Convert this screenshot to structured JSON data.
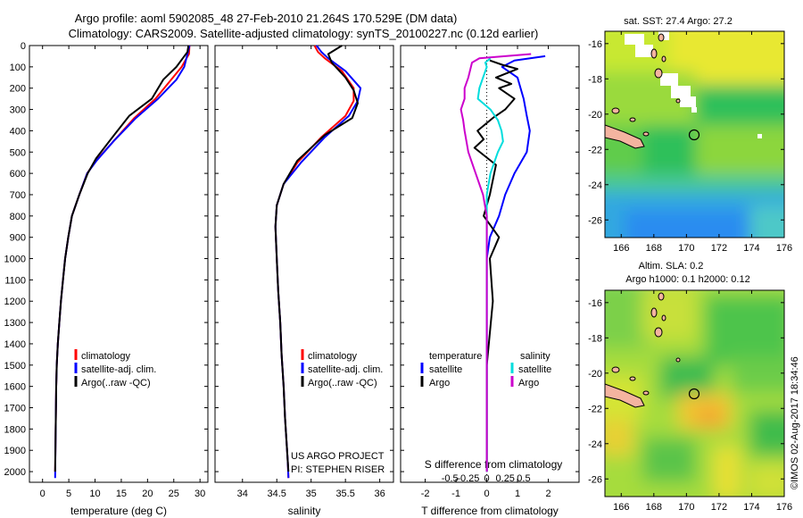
{
  "title": {
    "line1": "Argo profile: aoml 5902085_48 27-Feb-2010 21.264S 170.529E (DM data)",
    "line2": "Climatology: CARS2009. Satellite-adjusted climatology: synTS_20100227.nc (0.12d earlier)"
  },
  "colors": {
    "climatology": "#ff0000",
    "satellite": "#0000ff",
    "argo": "#000000",
    "sat_T": "#0000ff",
    "argo_T": "#000000",
    "sat_S": "#00dddd",
    "argo_S": "#cc00cc"
  },
  "chart_data": [
    {
      "id": "temperature",
      "type": "line",
      "xlabel": "temperature (deg C)",
      "xlim": [
        -2.5,
        31.5
      ],
      "ylim": [
        2050,
        0
      ],
      "xticks": [
        0,
        5,
        10,
        15,
        20,
        25,
        30
      ],
      "yticks": [
        0,
        100,
        200,
        300,
        400,
        500,
        600,
        700,
        800,
        900,
        1000,
        1100,
        1200,
        1300,
        1400,
        1500,
        1600,
        1700,
        1800,
        1900,
        2000
      ],
      "legend": [
        "climatology",
        "satellite-adj. clim.",
        "Argo(..raw -QC)"
      ],
      "series": [
        {
          "name": "climatology",
          "color": "#ff0000",
          "x": [
            28.0,
            27.9,
            26.5,
            24.5,
            21.5,
            17.5,
            13.5,
            10.2,
            8.5,
            7.0,
            5.6,
            4.9,
            4.3,
            3.9,
            3.5,
            3.2,
            2.9,
            2.7,
            2.6,
            2.5,
            2.4
          ],
          "y": [
            0,
            40,
            100,
            160,
            250,
            340,
            450,
            540,
            600,
            700,
            800,
            900,
            1000,
            1100,
            1200,
            1300,
            1400,
            1500,
            1600,
            1800,
            2000
          ]
        },
        {
          "name": "satellite-adj. clim.",
          "color": "#0000ff",
          "x": [
            28.0,
            27.6,
            27.0,
            25.5,
            22.0,
            17.8,
            13.5,
            10.3,
            8.5,
            7.0,
            5.6,
            4.9,
            4.3,
            3.9,
            3.5,
            3.2,
            2.9,
            2.7,
            2.6,
            2.5,
            2.4
          ],
          "y": [
            0,
            40,
            100,
            160,
            250,
            340,
            450,
            540,
            600,
            700,
            800,
            900,
            1000,
            1100,
            1200,
            1300,
            1400,
            1500,
            1600,
            1800,
            2030
          ]
        },
        {
          "name": "Argo(..raw -QC)",
          "color": "#000000",
          "x": [
            27.8,
            27.6,
            25.5,
            23.0,
            20.8,
            16.5,
            13.0,
            10.2,
            8.6,
            7.0,
            5.6,
            4.9,
            4.3,
            3.9,
            3.5,
            3.2,
            2.9,
            2.7,
            2.6,
            2.5,
            2.4
          ],
          "y": [
            0,
            30,
            100,
            160,
            250,
            330,
            440,
            530,
            600,
            700,
            800,
            900,
            1000,
            1100,
            1200,
            1300,
            1400,
            1500,
            1600,
            1800,
            2000
          ]
        }
      ]
    },
    {
      "id": "salinity",
      "type": "line",
      "xlabel": "salinity",
      "xlim": [
        33.6,
        36.2
      ],
      "ylim": [
        2050,
        0
      ],
      "xticks": [
        34,
        34.5,
        35,
        35.5,
        36
      ],
      "legend": [
        "climatology",
        "satellite-adj. clim.",
        "Argo(..raw -QC)"
      ],
      "series": [
        {
          "name": "climatology",
          "color": "#ff0000",
          "x": [
            35.05,
            35.1,
            35.2,
            35.45,
            35.62,
            35.62,
            35.5,
            35.15,
            34.8,
            34.6,
            34.5,
            34.48,
            34.5,
            34.52,
            34.55,
            34.57,
            34.6,
            34.62,
            34.64,
            34.66,
            34.67
          ],
          "y": [
            0,
            30,
            60,
            120,
            200,
            260,
            330,
            430,
            550,
            650,
            750,
            850,
            1000,
            1150,
            1300,
            1450,
            1600,
            1750,
            1850,
            1950,
            2030
          ]
        },
        {
          "name": "satellite-adj. clim.",
          "color": "#0000ff",
          "x": [
            35.08,
            35.15,
            35.25,
            35.5,
            35.72,
            35.68,
            35.55,
            35.2,
            34.85,
            34.6,
            34.5,
            34.48,
            34.5,
            34.52,
            34.55,
            34.57,
            34.6,
            34.62,
            34.64,
            34.66,
            34.67
          ],
          "y": [
            0,
            30,
            60,
            120,
            200,
            260,
            330,
            430,
            550,
            650,
            750,
            850,
            1000,
            1150,
            1300,
            1450,
            1600,
            1750,
            1850,
            1950,
            2030
          ]
        },
        {
          "name": "Argo(..raw -QC)",
          "color": "#000000",
          "x": [
            35.45,
            35.25,
            35.3,
            35.5,
            35.62,
            35.68,
            35.6,
            35.2,
            34.8,
            34.6,
            34.5,
            34.48,
            34.5,
            34.52,
            34.55,
            34.57,
            34.6,
            34.62,
            34.64,
            34.66,
            34.67
          ],
          "y": [
            0,
            40,
            80,
            150,
            210,
            270,
            340,
            420,
            540,
            650,
            750,
            850,
            1000,
            1150,
            1300,
            1450,
            1600,
            1750,
            1850,
            1950,
            2000
          ]
        }
      ],
      "annotation": [
        "US ARGO PROJECT",
        "PI: STEPHEN RISER"
      ]
    },
    {
      "id": "difference",
      "type": "line",
      "xlabel": "T difference from climatology",
      "xlabel2": "S difference from climatology",
      "xlim": [
        -2.8,
        3.0
      ],
      "ylim": [
        2050,
        0
      ],
      "xticks": [
        -2,
        -1,
        0,
        1,
        2
      ],
      "xticks_S": [
        -0.5,
        -0.25,
        0,
        0.25,
        0.5
      ],
      "legend_T": [
        "temperature",
        "satellite",
        "Argo"
      ],
      "legend_S": [
        "salinity",
        "satellite",
        "Argo"
      ],
      "series": [
        {
          "name": "T satellite",
          "color": "#0000ff",
          "x": [
            1.9,
            0.9,
            0.5,
            1.0,
            1.2,
            1.3,
            1.4,
            1.3,
            0.9,
            0.6,
            0.4,
            0.1,
            0.0,
            0.0,
            0.0,
            0.0,
            0.0,
            0.0
          ],
          "y": [
            50,
            70,
            100,
            150,
            250,
            330,
            400,
            500,
            600,
            700,
            800,
            900,
            1000,
            1200,
            1400,
            1600,
            1800,
            2000
          ]
        },
        {
          "name": "T Argo",
          "color": "#000000",
          "x": [
            0.1,
            0.5,
            1.0,
            0.3,
            0.8,
            0.4,
            0.9,
            0.6,
            0.2,
            -0.3,
            -0.1,
            -0.4,
            0.3,
            0.1,
            -0.1,
            0.4,
            0.1,
            0.2,
            0.0,
            0.0,
            0.0
          ],
          "y": [
            70,
            90,
            110,
            150,
            180,
            200,
            250,
            300,
            340,
            400,
            440,
            480,
            560,
            700,
            800,
            900,
            1000,
            1200,
            1500,
            1800,
            2000
          ]
        },
        {
          "name": "S satellite",
          "color": "#00dddd",
          "x": [
            0.05,
            -0.02,
            0.0,
            -0.05,
            -0.1,
            -0.12,
            0.05,
            0.15,
            0.2,
            0.22,
            0.15,
            0.05,
            0.0,
            0.0,
            0.0,
            0.0
          ],
          "y": [
            60,
            80,
            100,
            150,
            200,
            250,
            300,
            350,
            400,
            450,
            500,
            600,
            700,
            1000,
            1500,
            2000
          ]
        },
        {
          "name": "S Argo",
          "color": "#cc00cc",
          "x": [
            0.6,
            -0.1,
            -0.2,
            -0.25,
            -0.3,
            -0.3,
            -0.35,
            -0.32,
            -0.3,
            -0.25,
            -0.15,
            -0.05,
            0.0,
            0.0,
            0.0,
            0.0
          ],
          "y": [
            40,
            60,
            80,
            150,
            200,
            250,
            300,
            350,
            400,
            500,
            600,
            700,
            800,
            1000,
            1500,
            2000
          ]
        }
      ]
    }
  ],
  "maps": [
    {
      "id": "sst_map",
      "title": "sat. SST: 27.4  Argo: 27.2",
      "xticks": [
        166,
        168,
        170,
        172,
        174,
        176
      ],
      "yticks": [
        -16,
        -18,
        -20,
        -22,
        -24,
        -26
      ]
    },
    {
      "id": "sla_map",
      "title_line1": "Altim. SLA: 0.2",
      "title_line2": "Argo h1000: 0.1  h2000: 0.12",
      "xticks": [
        166,
        168,
        170,
        172,
        174,
        176
      ],
      "yticks": [
        -16,
        -18,
        -20,
        -22,
        -24,
        -26
      ]
    }
  ],
  "credit": "©IMOS 02-Aug-2017 18:34:46"
}
